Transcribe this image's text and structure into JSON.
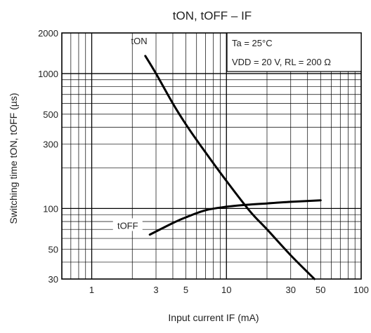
{
  "chart_data": {
    "type": "line",
    "title": "tON, tOFF – IF",
    "xlabel": "Input current   IF   (mA)",
    "ylabel": "Switching time   tON, tOFF   (µs)",
    "x_scale": "log",
    "y_scale": "log",
    "xlim": [
      0.6,
      100
    ],
    "ylim": [
      30,
      2000
    ],
    "x_ticks": [
      {
        "value": 1,
        "label": "1"
      },
      {
        "value": 3,
        "label": "3"
      },
      {
        "value": 5,
        "label": "5"
      },
      {
        "value": 10,
        "label": "10"
      },
      {
        "value": 30,
        "label": "30"
      },
      {
        "value": 50,
        "label": "50"
      },
      {
        "value": 100,
        "label": "100"
      }
    ],
    "y_ticks": [
      {
        "value": 30,
        "label": "30"
      },
      {
        "value": 50,
        "label": "50"
      },
      {
        "value": 100,
        "label": "100"
      },
      {
        "value": 300,
        "label": "300"
      },
      {
        "value": 500,
        "label": "500"
      },
      {
        "value": 1000,
        "label": "1000"
      },
      {
        "value": 2000,
        "label": "2000"
      }
    ],
    "grid": true,
    "annotations": [
      "Ta = 25°C",
      "VDD = 20 V, RL = 200 Ω"
    ],
    "annotation_box": "top-right",
    "series": [
      {
        "name": "tON",
        "color": "#000000",
        "x": [
          2.5,
          3,
          4,
          5,
          7,
          10,
          15,
          20,
          30,
          45
        ],
        "y": [
          1350,
          1000,
          600,
          420,
          260,
          160,
          95,
          70,
          45,
          30
        ]
      },
      {
        "name": "tOFF",
        "color": "#000000",
        "x": [
          2.7,
          4,
          5,
          7,
          10,
          15,
          20,
          30,
          50
        ],
        "y": [
          64,
          78,
          86,
          97,
          103,
          107,
          109,
          112,
          115
        ]
      }
    ]
  }
}
